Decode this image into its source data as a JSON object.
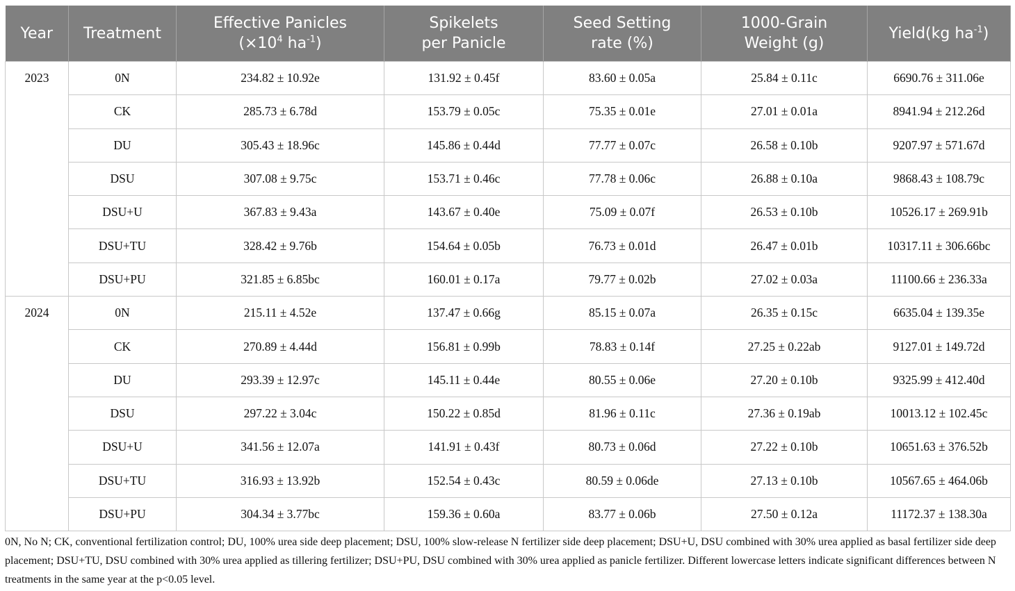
{
  "table": {
    "header": [
      [
        [
          "Year"
        ]
      ],
      [
        [
          "Treatment"
        ]
      ],
      [
        [
          "Effective Panicles"
        ],
        [
          "(×10",
          {
            "sup": "4"
          },
          " ha",
          {
            "sup": "-1"
          },
          ")"
        ]
      ],
      [
        [
          "Spikelets"
        ],
        [
          "per Panicle"
        ]
      ],
      [
        [
          "Seed Setting"
        ],
        [
          "rate (%)"
        ]
      ],
      [
        [
          "1000-Grain"
        ],
        [
          "Weight (g)"
        ]
      ],
      [
        [
          "Yield(kg ha",
          {
            "sup": "-1"
          },
          ")"
        ]
      ]
    ],
    "groups": [
      {
        "year": "2023",
        "rows": [
          [
            "0N",
            "234.82 ± 10.92e",
            "131.92 ± 0.45f",
            "83.60 ± 0.05a",
            "25.84 ± 0.11c",
            "6690.76 ± 311.06e"
          ],
          [
            "CK",
            "285.73 ± 6.78d",
            "153.79 ± 0.05c",
            "75.35 ± 0.01e",
            "27.01 ± 0.01a",
            "8941.94 ± 212.26d"
          ],
          [
            "DU",
            "305.43 ± 18.96c",
            "145.86 ± 0.44d",
            "77.77 ± 0.07c",
            "26.58 ± 0.10b",
            "9207.97 ± 571.67d"
          ],
          [
            "DSU",
            "307.08 ± 9.75c",
            "153.71 ± 0.46c",
            "77.78 ± 0.06c",
            "26.88 ± 0.10a",
            "9868.43 ± 108.79c"
          ],
          [
            "DSU+U",
            "367.83 ± 9.43a",
            "143.67 ± 0.40e",
            "75.09 ± 0.07f",
            "26.53 ± 0.10b",
            "10526.17 ± 269.91b"
          ],
          [
            "DSU+TU",
            "328.42 ± 9.76b",
            "154.64 ± 0.05b",
            "76.73 ± 0.01d",
            "26.47 ± 0.01b",
            "10317.11 ± 306.66bc"
          ],
          [
            "DSU+PU",
            "321.85 ± 6.85bc",
            "160.01 ± 0.17a",
            "79.77 ± 0.02b",
            "27.02 ± 0.03a",
            "11100.66 ± 236.33a"
          ]
        ]
      },
      {
        "year": "2024",
        "rows": [
          [
            "0N",
            "215.11 ± 4.52e",
            "137.47 ± 0.66g",
            "85.15 ± 0.07a",
            "26.35 ± 0.15c",
            "6635.04 ± 139.35e"
          ],
          [
            "CK",
            "270.89 ± 4.44d",
            "156.81 ± 0.99b",
            "78.83 ± 0.14f",
            "27.25 ± 0.22ab",
            "9127.01 ± 149.72d"
          ],
          [
            "DU",
            "293.39 ± 12.97c",
            "145.11 ± 0.44e",
            "80.55 ± 0.06e",
            "27.20 ± 0.10b",
            "9325.99 ± 412.40d"
          ],
          [
            "DSU",
            "297.22 ± 3.04c",
            "150.22 ± 0.85d",
            "81.96 ± 0.11c",
            "27.36 ± 0.19ab",
            "10013.12 ± 102.45c"
          ],
          [
            "DSU+U",
            "341.56 ± 12.07a",
            "141.91 ± 0.43f",
            "80.73 ± 0.06d",
            "27.22 ± 0.10b",
            "10651.63 ± 376.52b"
          ],
          [
            "DSU+TU",
            "316.93 ± 13.92b",
            "152.54 ± 0.43c",
            "80.59 ± 0.06de",
            "27.13 ± 0.10b",
            "10567.65 ± 464.06b"
          ],
          [
            "DSU+PU",
            "304.34 ± 3.77bc",
            "159.36 ± 0.60a",
            "83.77 ± 0.06b",
            "27.50 ± 0.12a",
            "11172.37 ± 138.30a"
          ]
        ]
      }
    ],
    "footnote": "0N, No N; CK, conventional fertilization control; DU, 100% urea side deep placement; DSU, 100% slow-release N fertilizer side deep placement; DSU+U, DSU combined with 30% urea applied as basal fertilizer side deep placement; DSU+TU, DSU combined with 30% urea applied as tillering fertilizer; DSU+PU, DSU combined with 30% urea applied as panicle fertilizer. Different lowercase letters indicate significant differences between N treatments in the same year at the p<0.05 level."
  }
}
